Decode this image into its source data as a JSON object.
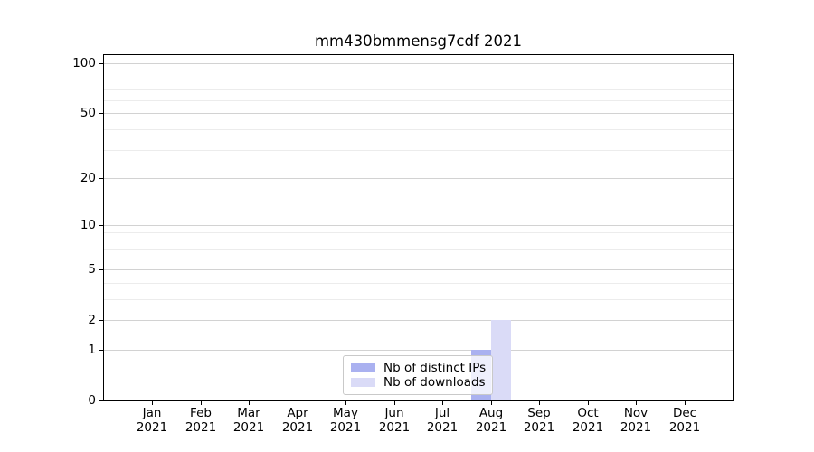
{
  "chart_data": {
    "type": "bar",
    "title": "mm430bmmensg7cdf 2021",
    "x": {
      "months": [
        "Jan",
        "Feb",
        "Mar",
        "Apr",
        "May",
        "Jun",
        "Jul",
        "Aug",
        "Sep",
        "Oct",
        "Nov",
        "Dec"
      ],
      "year": "2021"
    },
    "y_axis": {
      "scale": "log10(1+x)",
      "major_ticks": [
        0,
        1,
        2,
        5,
        10,
        20,
        50,
        100
      ],
      "minor_ticks": [
        3,
        4,
        6,
        7,
        8,
        9,
        30,
        40,
        60,
        70,
        80,
        90
      ],
      "ylim": [
        0,
        113
      ]
    },
    "series": [
      {
        "name": "Nb of distinct IPs",
        "color": "#aab1f0",
        "values": [
          0,
          0,
          0,
          0,
          0,
          0,
          0,
          1,
          0,
          0,
          0,
          0
        ]
      },
      {
        "name": "Nb of downloads",
        "color": "#dadbf7",
        "values": [
          0,
          0,
          0,
          0,
          0,
          0,
          0,
          2,
          0,
          0,
          0,
          0
        ]
      }
    ],
    "legend": {
      "position": "bottom-center",
      "frame": true
    },
    "grid": {
      "major_color": "#d2d2d2",
      "minor_color": "#ececec"
    },
    "axis_color": "#000000"
  }
}
